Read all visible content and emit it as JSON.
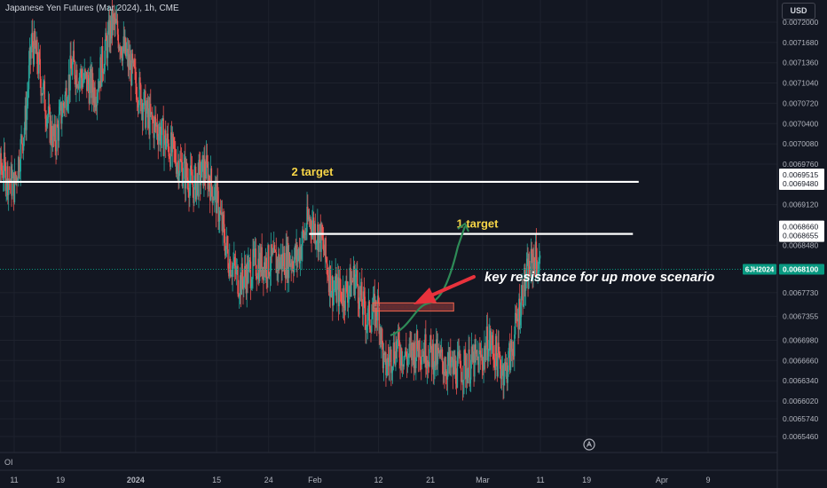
{
  "chart_title": "Japanese Yen Futures (Mar 2024), 1h, CME",
  "currency_label": "USD",
  "indicator_label": "OI",
  "colors": {
    "background": "#131722",
    "up": "#26a69a",
    "down": "#ef5350",
    "grid": "#1e222d",
    "annotation": "#ffffff",
    "target_text": "#f7d547",
    "arrow": "#e8323c",
    "projection": "#2e8b57",
    "last_price_badge": "#089981"
  },
  "chart_data": {
    "type": "candlestick",
    "symbol": "6JH2024",
    "interval": "1h",
    "last_price": 0.00681,
    "ylim": [
      0.00653,
      0.00722
    ],
    "y_tick_labels": [
      "0.0072000",
      "0.0071680",
      "0.0071360",
      "0.0071040",
      "0.0070720",
      "0.0070400",
      "0.0070080",
      "0.0069760",
      "0.0069120",
      "0.0068480",
      "0.0067730",
      "0.0067355",
      "0.0066980",
      "0.0066660",
      "0.0066340",
      "0.0066020",
      "0.0065740",
      "0.0065460"
    ],
    "y_tick_values": [
      0.0072,
      0.007168,
      0.007136,
      0.007104,
      0.007072,
      0.00704,
      0.007008,
      0.006976,
      0.006912,
      0.006848,
      0.006773,
      0.0067355,
      0.006698,
      0.006666,
      0.006634,
      0.006602,
      0.006574,
      0.006546
    ],
    "x_tick_labels": [
      "11",
      "19",
      "2024",
      "15",
      "24",
      "Feb",
      "12",
      "21",
      "Mar",
      "11",
      "19",
      "Apr",
      "9"
    ],
    "x_tick_dates": [
      "2023-12-11",
      "2023-12-19",
      "2024-01-01",
      "2024-01-15",
      "2024-01-24",
      "2024-02-01",
      "2024-02-12",
      "2024-02-21",
      "2024-03-01",
      "2024-03-11",
      "2024-03-19",
      "2024-04-01",
      "2024-04-09"
    ],
    "price_path": [
      {
        "date": "2023-12-06",
        "price": 0.00699
      },
      {
        "date": "2023-12-07",
        "price": 0.00707
      },
      {
        "date": "2023-12-08",
        "price": 0.00696
      },
      {
        "date": "2023-12-09",
        "price": 0.00697
      },
      {
        "date": "2023-12-11",
        "price": 0.00694
      },
      {
        "date": "2023-12-13",
        "price": 0.00705
      },
      {
        "date": "2023-12-14",
        "price": 0.00717
      },
      {
        "date": "2023-12-15",
        "price": 0.00714
      },
      {
        "date": "2023-12-17",
        "price": 0.00704
      },
      {
        "date": "2023-12-18",
        "price": 0.00701
      },
      {
        "date": "2023-12-21",
        "price": 0.00713
      },
      {
        "date": "2023-12-25",
        "price": 0.00709
      },
      {
        "date": "2023-12-28",
        "price": 0.0072
      },
      {
        "date": "2023-12-29",
        "price": 0.00718
      },
      {
        "date": "2024-01-02",
        "price": 0.00708
      },
      {
        "date": "2024-01-03",
        "price": 0.00705
      },
      {
        "date": "2024-01-05",
        "price": 0.00703
      },
      {
        "date": "2024-01-09",
        "price": 0.00697
      },
      {
        "date": "2024-01-11",
        "price": 0.00694
      },
      {
        "date": "2024-01-13",
        "price": 0.00697
      },
      {
        "date": "2024-01-15",
        "price": 0.00692
      },
      {
        "date": "2024-01-17",
        "price": 0.00683
      },
      {
        "date": "2024-01-19",
        "price": 0.00679
      },
      {
        "date": "2024-01-22",
        "price": 0.00682
      },
      {
        "date": "2024-01-25",
        "price": 0.00682
      },
      {
        "date": "2024-01-29",
        "price": 0.00683
      },
      {
        "date": "2024-01-31",
        "price": 0.00689
      },
      {
        "date": "2024-02-02",
        "price": 0.00686
      },
      {
        "date": "2024-02-04",
        "price": 0.00678
      },
      {
        "date": "2024-02-06",
        "price": 0.00677
      },
      {
        "date": "2024-02-08",
        "price": 0.0068
      },
      {
        "date": "2024-02-09",
        "price": 0.00676
      },
      {
        "date": "2024-02-10",
        "price": 0.00673
      },
      {
        "date": "2024-02-12",
        "price": 0.00675
      },
      {
        "date": "2024-02-13",
        "price": 0.00665
      },
      {
        "date": "2024-02-15",
        "price": 0.00669
      },
      {
        "date": "2024-02-17",
        "price": 0.00667
      },
      {
        "date": "2024-02-19",
        "price": 0.00669
      },
      {
        "date": "2024-02-22",
        "price": 0.00667
      },
      {
        "date": "2024-02-25",
        "price": 0.00665
      },
      {
        "date": "2024-02-28",
        "price": 0.00666
      },
      {
        "date": "2024-03-01",
        "price": 0.00667
      },
      {
        "date": "2024-03-02",
        "price": 0.0067
      },
      {
        "date": "2024-03-04",
        "price": 0.00666
      },
      {
        "date": "2024-03-05",
        "price": 0.00665
      },
      {
        "date": "2024-03-06",
        "price": 0.00668
      },
      {
        "date": "2024-03-07",
        "price": 0.00673
      },
      {
        "date": "2024-03-08",
        "price": 0.00678
      },
      {
        "date": "2024-03-10",
        "price": 0.00683
      },
      {
        "date": "2024-03-11",
        "price": 0.00681
      }
    ],
    "horizontal_levels": [
      {
        "label": "2 target",
        "price": 0.006948,
        "from": "2023-12-01",
        "to": "2024-03-28",
        "price_badges": [
          "0.0069515",
          "0.0069480"
        ]
      },
      {
        "label": "1 target",
        "price": 0.0068658,
        "from": "2024-01-31",
        "to": "2024-03-27",
        "price_badges": [
          "0.0068660",
          "0.0068655"
        ]
      }
    ],
    "resistance_zone": {
      "price_low": 0.006744,
      "price_high": 0.006757,
      "from": "2024-02-11",
      "to": "2024-02-25"
    },
    "annotation": "key resistance for up move scenario",
    "price_badge_labels": {
      "symbol": "6JH2024",
      "value": "0.0068100"
    }
  }
}
